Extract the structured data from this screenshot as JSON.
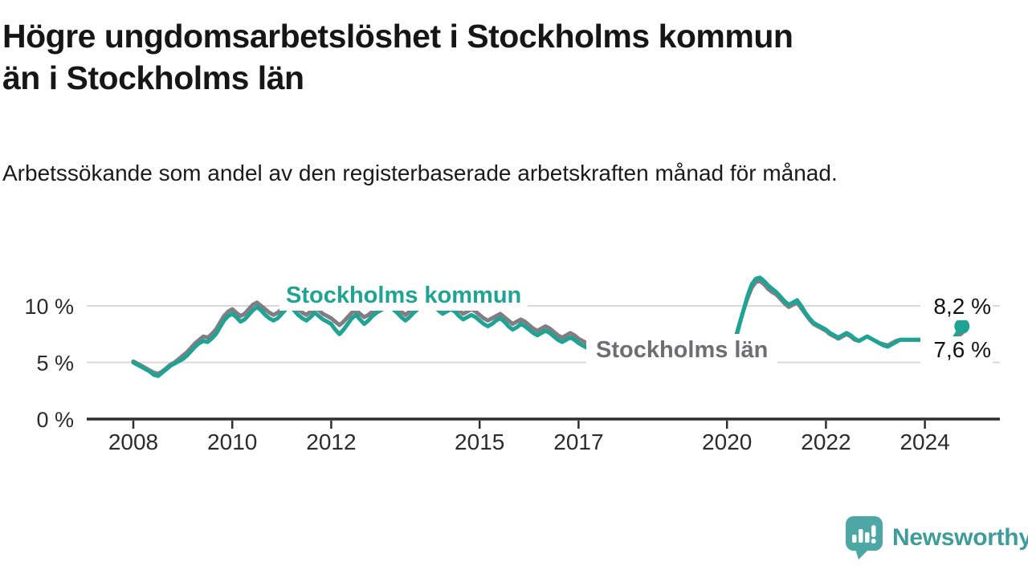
{
  "chart_data": {
    "type": "line",
    "title": "Högre ungdomsarbetslöshet i Stockholms kommun än i Stockholms län",
    "title_lines": [
      "Högre ungdomsarbetslöshet i Stockholms kommun",
      "än i Stockholms län"
    ],
    "subtitle": "Arbetssökande som andel av den registerbaserade arbetskraften månad för månad.",
    "unit": "%",
    "frequency": "monthly",
    "x_start": "2008-01",
    "x_end": "2024-10",
    "ylim": [
      0,
      13
    ],
    "grid": "horizontal",
    "legend_position": "inline-labels",
    "y_ticks": [
      {
        "value": 0,
        "label": "0 %"
      },
      {
        "value": 5,
        "label": "5 %"
      },
      {
        "value": 10,
        "label": "10 %"
      }
    ],
    "x_ticks": [
      {
        "year": 2008,
        "label": "2008"
      },
      {
        "year": 2010,
        "label": "2010"
      },
      {
        "year": 2012,
        "label": "2012"
      },
      {
        "year": 2015,
        "label": "2015"
      },
      {
        "year": 2017,
        "label": "2017"
      },
      {
        "year": 2020,
        "label": "2020"
      },
      {
        "year": 2022,
        "label": "2022"
      },
      {
        "year": 2024,
        "label": "2024"
      }
    ],
    "series": [
      {
        "name": "Stockholms län",
        "color": "#7f7f83",
        "end_label": "7,6 %",
        "end_value": 7.6,
        "values": [
          5.1,
          4.9,
          4.7,
          4.5,
          4.3,
          4.1,
          4.0,
          4.2,
          4.5,
          4.8,
          5.0,
          5.3,
          5.6,
          5.9,
          6.3,
          6.7,
          7.0,
          7.3,
          7.2,
          7.5,
          7.9,
          8.5,
          9.1,
          9.5,
          9.7,
          9.4,
          9.1,
          9.3,
          9.7,
          10.1,
          10.3,
          10.0,
          9.7,
          9.4,
          9.2,
          9.4,
          9.7,
          10.0,
          10.2,
          10.0,
          9.7,
          9.4,
          9.2,
          9.5,
          9.8,
          9.6,
          9.3,
          9.1,
          8.9,
          8.6,
          8.3,
          8.6,
          9.0,
          9.4,
          9.6,
          9.3,
          9.0,
          9.2,
          9.5,
          9.8,
          10.0,
          10.2,
          10.3,
          10.1,
          9.8,
          9.5,
          9.2,
          9.5,
          9.8,
          10.1,
          10.3,
          10.4,
          10.5,
          10.3,
          10.0,
          9.7,
          9.9,
          10.1,
          9.9,
          9.6,
          9.3,
          9.5,
          9.7,
          9.5,
          9.2,
          8.9,
          8.7,
          8.9,
          9.1,
          9.3,
          9.0,
          8.7,
          8.4,
          8.6,
          8.8,
          8.6,
          8.3,
          8.0,
          7.8,
          8.0,
          8.2,
          8.0,
          7.7,
          7.4,
          7.2,
          7.4,
          7.6,
          7.4,
          7.1,
          6.9,
          6.7,
          6.8,
          7.0,
          6.9,
          6.7,
          6.5,
          6.4,
          6.5,
          6.6,
          6.5,
          6.3,
          6.1,
          6.0,
          6.1,
          6.2,
          6.1,
          5.9,
          5.8,
          5.7,
          5.8,
          5.9,
          5.9,
          5.8,
          5.7,
          5.7,
          5.8,
          5.9,
          6.0,
          5.9,
          5.8,
          5.9,
          6.0,
          6.1,
          6.2,
          6.3,
          6.5,
          7.1,
          8.4,
          9.6,
          10.7,
          11.6,
          12.1,
          12.2,
          11.9,
          11.5,
          11.2,
          11.0,
          10.6,
          10.2,
          9.9,
          10.1,
          10.3,
          9.8,
          9.3,
          8.8,
          8.4,
          8.2,
          8.0,
          7.8,
          7.5,
          7.3,
          7.1,
          7.3,
          7.5,
          7.3,
          7.0,
          6.9,
          7.1,
          7.3,
          7.1,
          6.9,
          6.7,
          6.6,
          6.5,
          6.7,
          6.9,
          7.0,
          7.0,
          7.0,
          7.0,
          7.0,
          7.0,
          7.0,
          6.9,
          7.0,
          7.1,
          6.9,
          6.8,
          6.9,
          7.0,
          7.3,
          7.6
        ]
      },
      {
        "name": "Stockholms kommun",
        "color": "#1ea394",
        "end_label": "8,2 %",
        "end_value": 8.2,
        "values": [
          5.0,
          4.8,
          4.6,
          4.4,
          4.2,
          3.9,
          3.8,
          4.1,
          4.4,
          4.7,
          4.9,
          5.1,
          5.3,
          5.6,
          6.0,
          6.4,
          6.7,
          6.9,
          6.8,
          7.1,
          7.5,
          8.1,
          8.7,
          9.1,
          9.3,
          9.0,
          8.6,
          8.8,
          9.2,
          9.6,
          9.9,
          9.6,
          9.2,
          8.9,
          8.7,
          8.9,
          9.3,
          9.7,
          9.9,
          9.6,
          9.2,
          8.9,
          8.7,
          9.0,
          9.4,
          9.1,
          8.8,
          8.6,
          8.4,
          7.9,
          7.5,
          7.9,
          8.4,
          8.9,
          9.2,
          8.8,
          8.4,
          8.7,
          9.1,
          9.4,
          9.6,
          9.8,
          9.9,
          9.7,
          9.4,
          9.0,
          8.7,
          9.0,
          9.4,
          9.7,
          9.9,
          10.0,
          10.1,
          9.9,
          9.6,
          9.3,
          9.5,
          9.7,
          9.5,
          9.1,
          8.8,
          9.0,
          9.2,
          9.0,
          8.7,
          8.4,
          8.2,
          8.4,
          8.7,
          8.9,
          8.6,
          8.2,
          7.9,
          8.1,
          8.4,
          8.2,
          7.9,
          7.6,
          7.4,
          7.6,
          7.8,
          7.6,
          7.3,
          7.0,
          6.8,
          7.0,
          7.2,
          7.0,
          6.7,
          6.5,
          6.3,
          6.5,
          6.7,
          6.6,
          6.4,
          6.2,
          6.1,
          6.2,
          6.3,
          6.2,
          6.1,
          5.9,
          5.8,
          5.9,
          6.0,
          5.9,
          5.7,
          5.6,
          5.5,
          5.6,
          5.7,
          5.7,
          5.6,
          5.5,
          5.5,
          5.6,
          5.7,
          5.8,
          5.7,
          5.6,
          5.7,
          5.8,
          5.9,
          6.0,
          6.1,
          6.3,
          6.9,
          8.3,
          9.6,
          10.9,
          11.9,
          12.4,
          12.5,
          12.2,
          11.8,
          11.5,
          11.2,
          10.8,
          10.4,
          10.1,
          10.3,
          10.5,
          10.0,
          9.4,
          8.9,
          8.5,
          8.3,
          8.1,
          7.9,
          7.6,
          7.4,
          7.2,
          7.4,
          7.6,
          7.4,
          7.1,
          6.9,
          7.1,
          7.3,
          7.1,
          6.9,
          6.7,
          6.5,
          6.4,
          6.6,
          6.8,
          7.0,
          7.0,
          7.0,
          7.0,
          7.0,
          7.0,
          7.0,
          6.8,
          7.0,
          7.1,
          6.9,
          6.7,
          6.9,
          7.1,
          7.7,
          8.2
        ]
      }
    ]
  },
  "footer": {
    "brand": "Newsworthy"
  },
  "colors": {
    "kommun_line": "#1ea394",
    "lan_line": "#7f7f83",
    "lan_label_text": "#6d6d72",
    "gridline": "#d9d9d9",
    "axis": "#2e2e2e",
    "text": "#161616",
    "logo_teal": "#4ca7a5"
  }
}
